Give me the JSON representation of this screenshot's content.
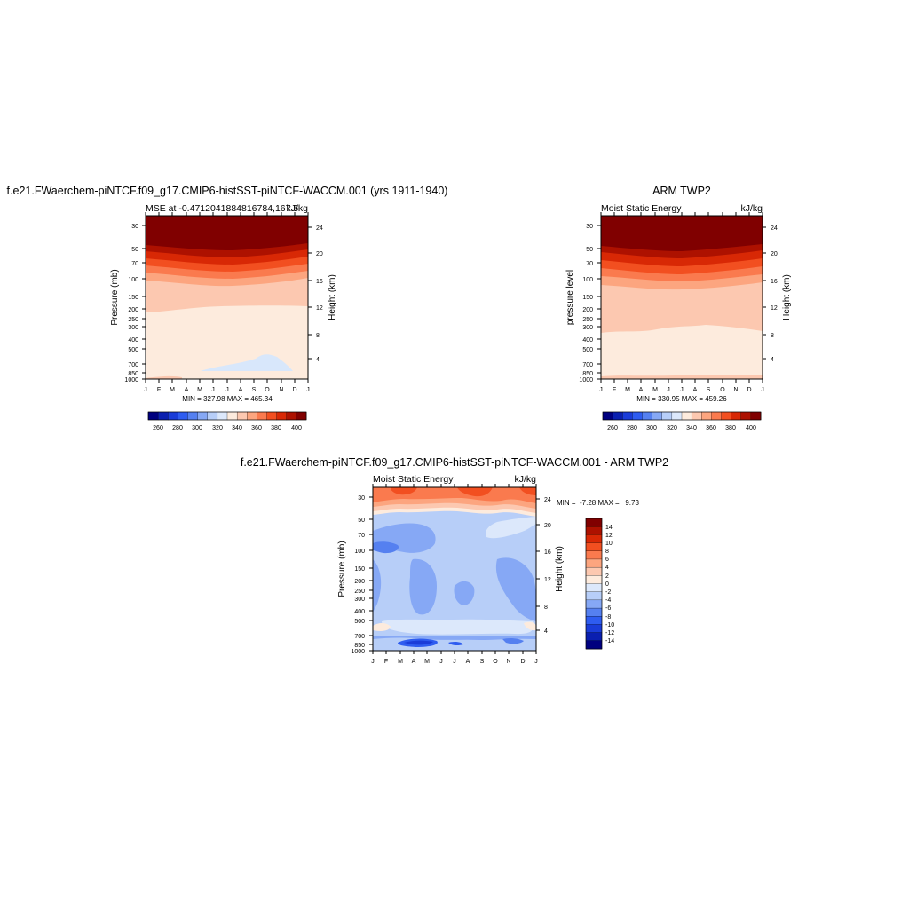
{
  "panels": [
    {
      "title": "f.e21.FWaerchem-piNTCF.f09_g17.CMIP6-histSST-piNTCF-WACCM.001 (yrs 1911-1940)",
      "left_label": "MSE at -0.4712041884816784,167.5",
      "right_label": "kJ/kg",
      "ylabel_left": "Pressure (mb)",
      "ylabel_right": "Height (km)",
      "min_max_text": "MIN = 327.98 MAX = 465.34"
    },
    {
      "title": "ARM TWP2",
      "left_label": "Moist Static Energy",
      "right_label": "kJ/kg",
      "ylabel_left": "pressure level",
      "ylabel_right": "Height (km)",
      "min_max_text": "MIN = 330.95 MAX = 459.26"
    },
    {
      "title": "f.e21.FWaerchem-piNTCF.f09_g17.CMIP6-histSST-piNTCF-WACCM.001 - ARM TWP2",
      "left_label": "Moist Static Energy",
      "right_label": "kJ/kg",
      "ylabel_left": "Pressure (mb)",
      "ylabel_right": "Height (km)",
      "min_max_text": "MIN =  -7.28 MAX =   9.73"
    }
  ],
  "chart_data": [
    {
      "type": "heatmap",
      "x_ticklabels": [
        "J",
        "F",
        "M",
        "A",
        "M",
        "J",
        "J",
        "A",
        "S",
        "O",
        "N",
        "D",
        "J"
      ],
      "y_pressure_ticks": [
        30,
        50,
        70,
        100,
        150,
        200,
        250,
        300,
        400,
        500,
        700,
        850,
        1000
      ],
      "y_height_ticks": [
        4,
        8,
        12,
        16,
        20,
        24
      ],
      "colorbar": {
        "levels": [
          260,
          270,
          280,
          290,
          300,
          310,
          320,
          330,
          340,
          350,
          360,
          370,
          380,
          390,
          400
        ],
        "labels": [
          "260",
          "280",
          "300",
          "320",
          "340",
          "360",
          "380",
          "400"
        ],
        "colors": [
          "#00007f",
          "#0a1fb0",
          "#1a3cd8",
          "#2e5cf0",
          "#5580f0",
          "#86a8f5",
          "#b7cef8",
          "#dce8fb",
          "#fdebdd",
          "#fcc8b0",
          "#fca57f",
          "#fa7a4e",
          "#f24f20",
          "#d82805",
          "#ad1100",
          "#800000"
        ]
      }
    },
    {
      "type": "heatmap",
      "x_ticklabels": [
        "J",
        "F",
        "M",
        "A",
        "M",
        "J",
        "J",
        "A",
        "S",
        "O",
        "N",
        "D",
        "J"
      ],
      "y_pressure_ticks": [
        30,
        50,
        70,
        100,
        150,
        200,
        250,
        300,
        400,
        500,
        700,
        850,
        1000
      ],
      "y_height_ticks": [
        4,
        8,
        12,
        16,
        20,
        24
      ],
      "colorbar": {
        "levels": [
          260,
          270,
          280,
          290,
          300,
          310,
          320,
          330,
          340,
          350,
          360,
          370,
          380,
          390,
          400
        ],
        "labels": [
          "260",
          "280",
          "300",
          "320",
          "340",
          "360",
          "380",
          "400"
        ],
        "colors": [
          "#00007f",
          "#0a1fb0",
          "#1a3cd8",
          "#2e5cf0",
          "#5580f0",
          "#86a8f5",
          "#b7cef8",
          "#dce8fb",
          "#fdebdd",
          "#fcc8b0",
          "#fca57f",
          "#fa7a4e",
          "#f24f20",
          "#d82805",
          "#ad1100",
          "#800000"
        ]
      }
    },
    {
      "type": "heatmap",
      "x_ticklabels": [
        "J",
        "F",
        "M",
        "A",
        "M",
        "J",
        "J",
        "A",
        "S",
        "O",
        "N",
        "D",
        "J"
      ],
      "y_pressure_ticks": [
        30,
        50,
        70,
        100,
        150,
        200,
        250,
        300,
        400,
        500,
        700,
        850,
        1000
      ],
      "y_height_ticks": [
        4,
        8,
        12,
        16,
        20,
        24
      ],
      "colorbar": {
        "levels": [
          -14,
          -12,
          -10,
          -8,
          -6,
          -4,
          -2,
          0,
          2,
          4,
          6,
          8,
          10,
          12,
          14
        ],
        "labels": [
          "14",
          "12",
          "10",
          "8",
          "6",
          "4",
          "2",
          "0",
          "-2",
          "-4",
          "-6",
          "-8",
          "-10",
          "-12",
          "-14"
        ],
        "colors": [
          "#800000",
          "#ad1100",
          "#d82805",
          "#f24f20",
          "#fa7a4e",
          "#fca57f",
          "#fcc8b0",
          "#fdebdd",
          "#dce8fb",
          "#b7cef8",
          "#86a8f5",
          "#5580f0",
          "#2e5cf0",
          "#1a3cd8",
          "#0a1fb0",
          "#00007f"
        ]
      }
    }
  ]
}
